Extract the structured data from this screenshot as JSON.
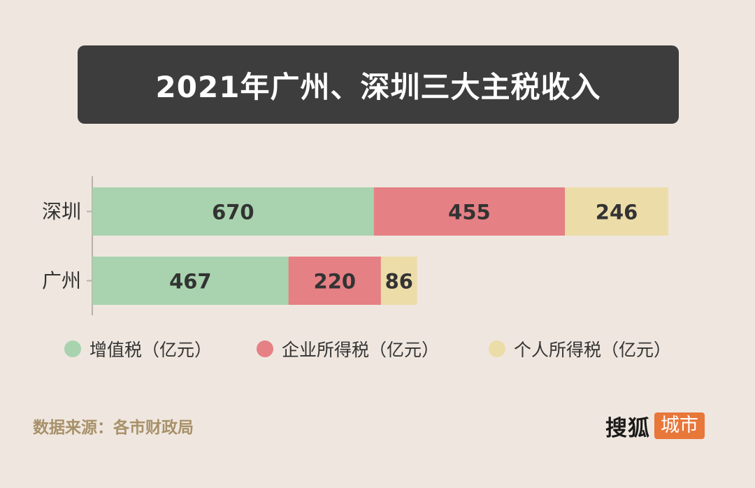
{
  "title": "2021年广州、深圳三大主税收入",
  "chart_data": {
    "type": "bar",
    "orientation": "horizontal",
    "stacked": true,
    "title": "2021年广州、深圳三大主税收入",
    "categories": [
      "深圳",
      "广州"
    ],
    "series": [
      {
        "name": "增值税（亿元）",
        "values": [
          670,
          467
        ],
        "color": "#a8d3ae"
      },
      {
        "name": "企业所得税（亿元）",
        "values": [
          455,
          220
        ],
        "color": "#e58085"
      },
      {
        "name": "个人所得税（亿元）",
        "values": [
          246,
          86
        ],
        "color": "#ecdca8"
      }
    ],
    "xlim": [
      0,
      1371
    ],
    "grid": false,
    "legend_position": "bottom",
    "data_labels": true
  },
  "legend": [
    {
      "label": "增值税（亿元）",
      "color": "#a8d3ae"
    },
    {
      "label": "企业所得税（亿元）",
      "color": "#e58085"
    },
    {
      "label": "个人所得税（亿元）",
      "color": "#ecdca8"
    }
  ],
  "source": "数据来源：各市财政局",
  "brand": {
    "main": "搜狐",
    "tag": "城市"
  },
  "colors": {
    "background": "#efe7df",
    "title_bg": "#3d3d3d",
    "source_text": "#a8916a",
    "brand_accent": "#e8773a"
  }
}
